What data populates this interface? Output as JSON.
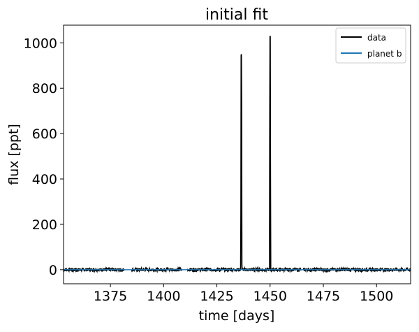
{
  "chart_data": {
    "type": "line",
    "title": "initial fit",
    "xlabel": "time [days]",
    "ylabel": "flux [ppt]",
    "xlim": [
      1353,
      1516
    ],
    "ylim": [
      -62,
      1078
    ],
    "xticks": [
      1375,
      1400,
      1425,
      1450,
      1475,
      1500
    ],
    "yticks": [
      0,
      200,
      400,
      600,
      800,
      1000
    ],
    "grid": false,
    "legend_position": "top-right",
    "series": [
      {
        "name": "data",
        "color": "#000000",
        "data_gaps_days": [
          [
            1381.5,
            1385.0
          ],
          [
            1408.5,
            1411.0
          ],
          [
            1464.5,
            1465.5
          ]
        ],
        "spikes": [
          {
            "x": 1436.5,
            "y": 950
          },
          {
            "x": 1450.0,
            "y": 1028
          },
          {
            "x": 1401.5,
            "y": 8
          }
        ],
        "baseline": 0,
        "x_range": [
          1353,
          1516
        ]
      },
      {
        "name": "planet b",
        "color": "#1f77b4",
        "x": [
          1353,
          1516
        ],
        "y": [
          0,
          0
        ]
      }
    ]
  }
}
